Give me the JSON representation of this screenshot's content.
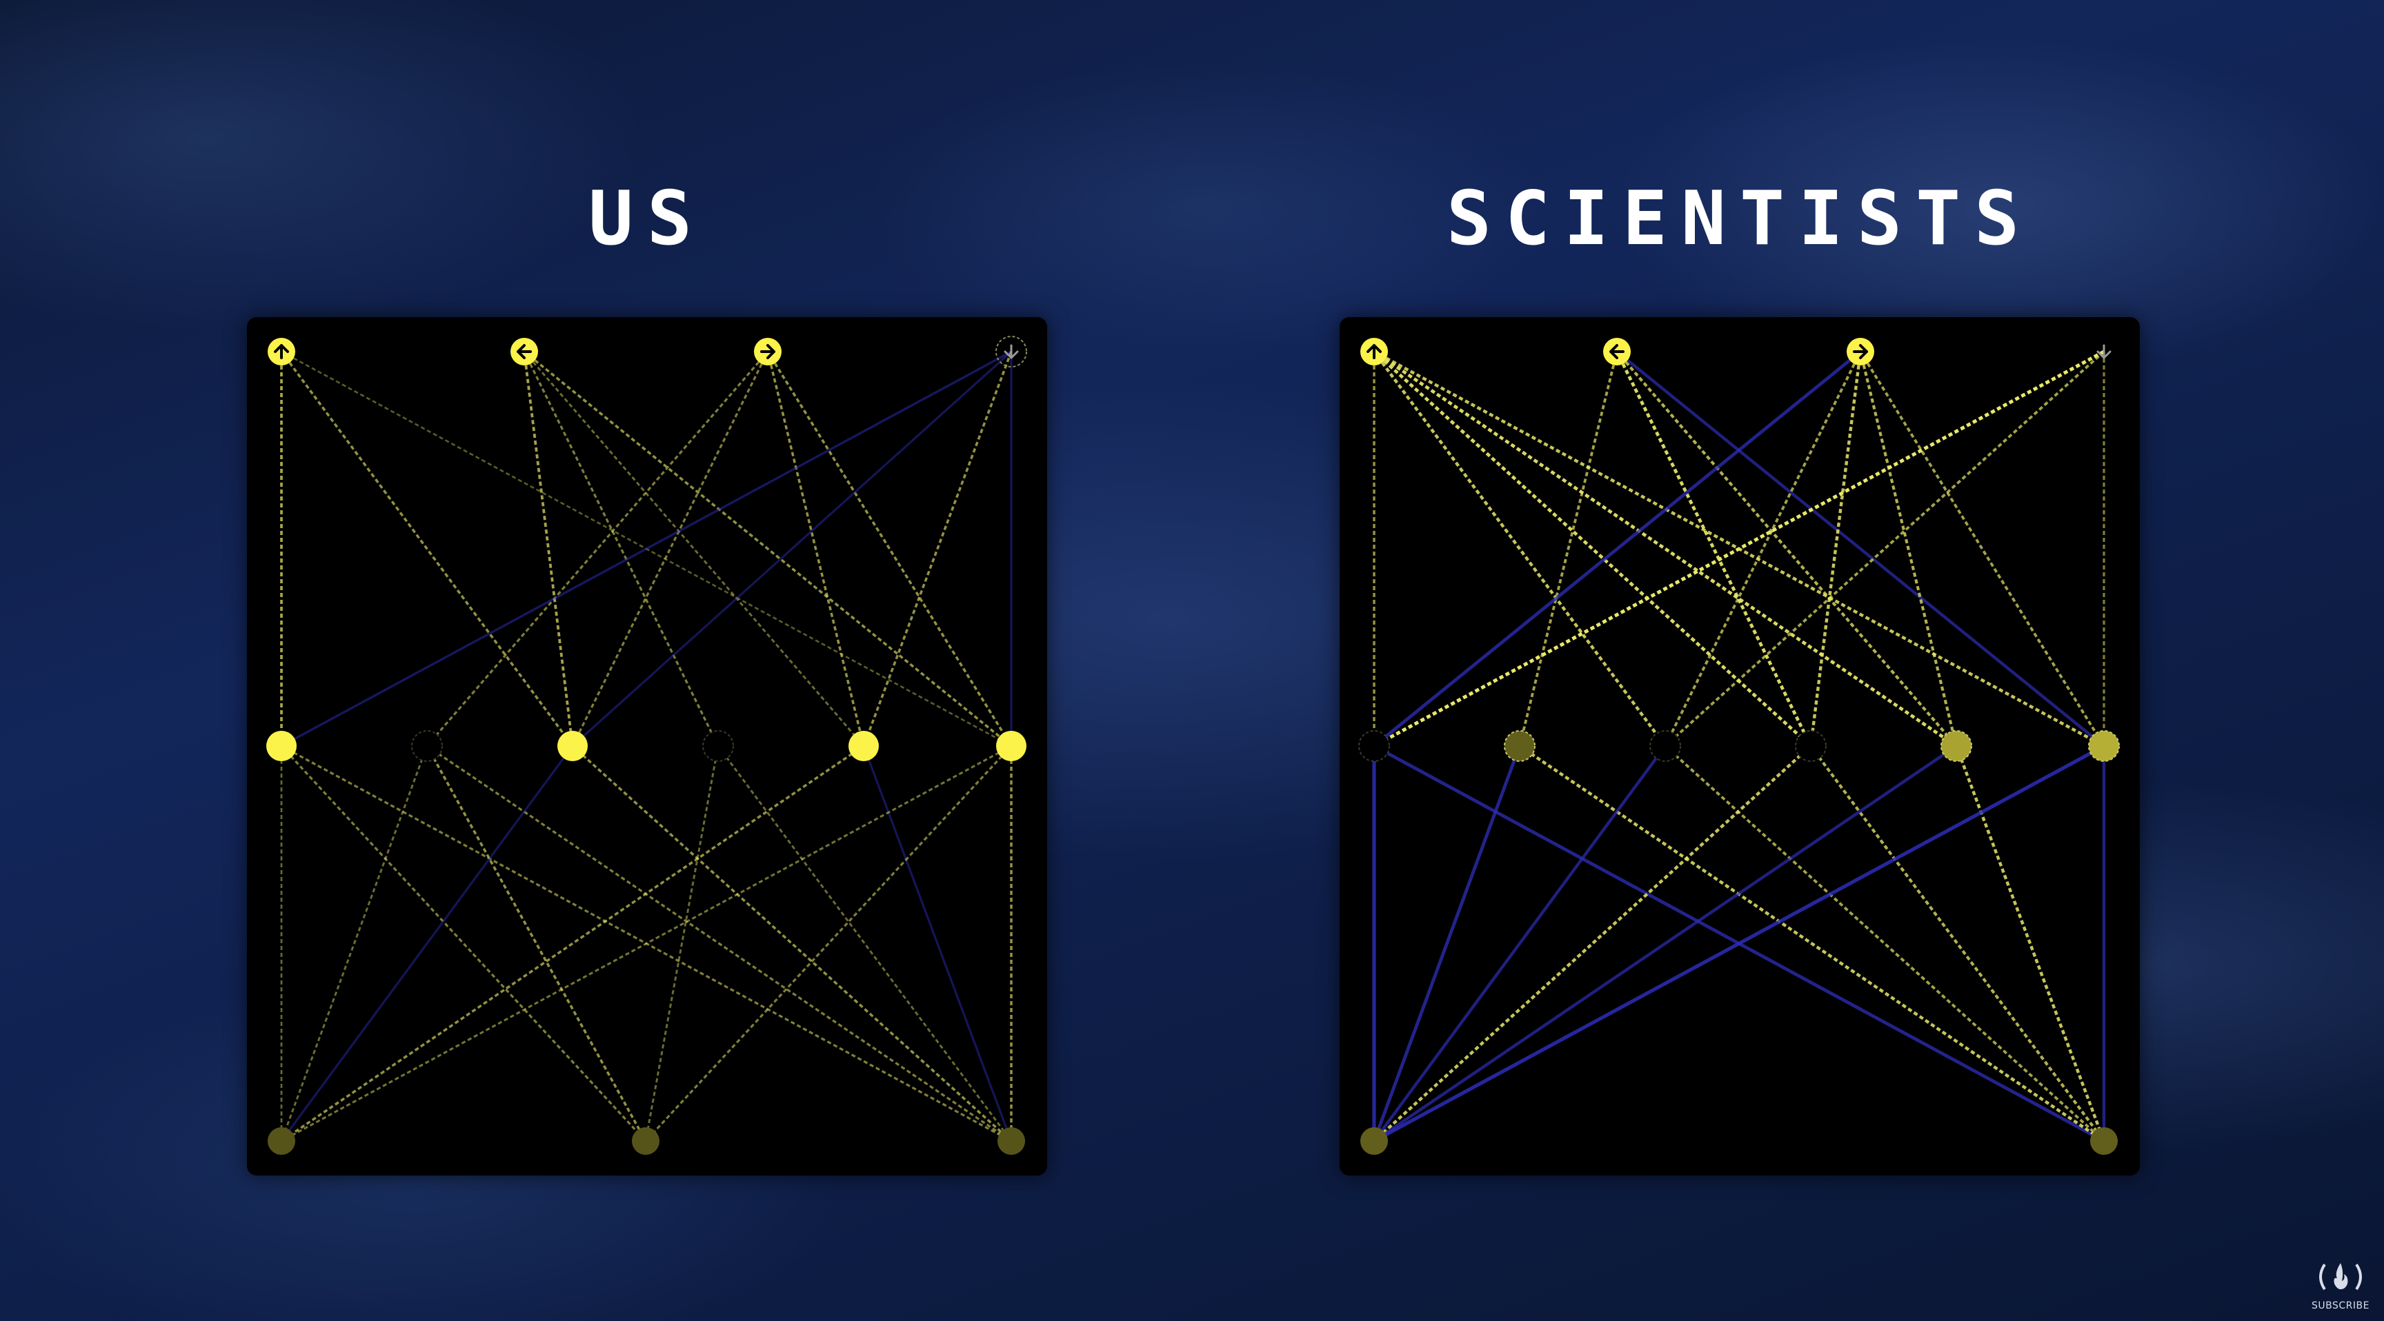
{
  "panels": [
    {
      "id": "us",
      "title": "US",
      "inputs": [
        {
          "icon": "arrow-up-icon",
          "state": "active"
        },
        {
          "icon": "arrow-left-icon",
          "state": "active"
        },
        {
          "icon": "arrow-right-icon",
          "state": "active"
        },
        {
          "icon": "arrow-down-icon",
          "state": "inactive"
        }
      ],
      "hidden_activations": [
        1,
        0,
        1,
        0,
        1,
        1
      ],
      "output_activations": [
        0.3,
        0.3,
        0.3
      ],
      "connections": [
        [
          "i0",
          "h0",
          "y",
          0.6
        ],
        [
          "i0",
          "h2",
          "y",
          0.5
        ],
        [
          "i0",
          "h5",
          "y",
          0.2
        ],
        [
          "i1",
          "h2",
          "y",
          0.6
        ],
        [
          "i1",
          "h3",
          "y",
          0.4
        ],
        [
          "i1",
          "h4",
          "y",
          0.3
        ],
        [
          "i1",
          "h5",
          "y",
          0.5
        ],
        [
          "i2",
          "h1",
          "y",
          0.4
        ],
        [
          "i2",
          "h2",
          "y",
          0.4
        ],
        [
          "i2",
          "h4",
          "y",
          0.5
        ],
        [
          "i2",
          "h5",
          "y",
          0.5
        ],
        [
          "i3",
          "h0",
          "b",
          0.35
        ],
        [
          "i3",
          "h2",
          "b",
          0.3
        ],
        [
          "i3",
          "h4",
          "y",
          0.5
        ],
        [
          "i3",
          "h5",
          "b",
          0.3
        ],
        [
          "h0",
          "o0",
          "y",
          0.25
        ],
        [
          "h0",
          "o1",
          "y",
          0.4
        ],
        [
          "h0",
          "o2",
          "y",
          0.4
        ],
        [
          "h1",
          "o0",
          "y",
          0.3
        ],
        [
          "h1",
          "o1",
          "y",
          0.5
        ],
        [
          "h1",
          "o2",
          "y",
          0.4
        ],
        [
          "h2",
          "o0",
          "b",
          0.3
        ],
        [
          "h2",
          "o2",
          "y",
          0.5
        ],
        [
          "h3",
          "o1",
          "y",
          0.3
        ],
        [
          "h3",
          "o2",
          "y",
          0.3
        ],
        [
          "h4",
          "o0",
          "y",
          0.5
        ],
        [
          "h4",
          "o2",
          "b",
          0.3
        ],
        [
          "h5",
          "o0",
          "y",
          0.35
        ],
        [
          "h5",
          "o1",
          "y",
          0.4
        ],
        [
          "h5",
          "o2",
          "y",
          0.5
        ]
      ]
    },
    {
      "id": "scientists",
      "title": "SCIENTISTS",
      "inputs": [
        {
          "icon": "arrow-up-icon",
          "state": "active"
        },
        {
          "icon": "arrow-left-icon",
          "state": "active"
        },
        {
          "icon": "arrow-right-icon",
          "state": "active"
        },
        {
          "icon": "arrow-down-icon",
          "state": "inactive"
        }
      ],
      "hidden_activations": [
        0,
        0.35,
        0,
        0,
        0.65,
        0.7
      ],
      "output_activations": [
        0.35,
        0.35
      ],
      "connections": [
        [
          "i0",
          "h0",
          "y",
          0.5
        ],
        [
          "i0",
          "h2",
          "y",
          0.8
        ],
        [
          "i0",
          "h3",
          "y",
          0.9
        ],
        [
          "i0",
          "h4",
          "y",
          0.9
        ],
        [
          "i0",
          "h5",
          "y",
          0.8
        ],
        [
          "i1",
          "h1",
          "y",
          0.6
        ],
        [
          "i1",
          "h3",
          "y",
          0.9
        ],
        [
          "i1",
          "h4",
          "y",
          0.7
        ],
        [
          "i1",
          "h5",
          "b",
          0.6
        ],
        [
          "i2",
          "h0",
          "b",
          0.7
        ],
        [
          "i2",
          "h2",
          "y",
          0.6
        ],
        [
          "i2",
          "h3",
          "y",
          0.8
        ],
        [
          "i2",
          "h4",
          "y",
          0.7
        ],
        [
          "i2",
          "h5",
          "y",
          0.6
        ],
        [
          "i3",
          "h0",
          "y",
          1.0
        ],
        [
          "i3",
          "h2",
          "y",
          0.6
        ],
        [
          "i3",
          "h5",
          "y",
          0.4
        ],
        [
          "h0",
          "o0",
          "b",
          0.8
        ],
        [
          "h0",
          "o1",
          "b",
          0.7
        ],
        [
          "h1",
          "o0",
          "b",
          0.7
        ],
        [
          "h1",
          "o1",
          "y",
          0.8
        ],
        [
          "h2",
          "o0",
          "b",
          0.6
        ],
        [
          "h2",
          "o1",
          "y",
          0.6
        ],
        [
          "h3",
          "o0",
          "y",
          0.8
        ],
        [
          "h3",
          "o1",
          "y",
          0.7
        ],
        [
          "h4",
          "o0",
          "b",
          0.6
        ],
        [
          "h4",
          "o1",
          "y",
          0.8
        ],
        [
          "h5",
          "o0",
          "b",
          0.8
        ],
        [
          "h5",
          "o1",
          "b",
          0.6
        ]
      ]
    }
  ],
  "colors": {
    "active_node": "#fbf34a",
    "dim_node": "#3a3a14",
    "positive_link": "#e8e86a",
    "negative_link": "#2d2db8"
  },
  "brand": {
    "label": "SUBSCRIBE",
    "icon": "freecodecamp-logo-icon"
  }
}
